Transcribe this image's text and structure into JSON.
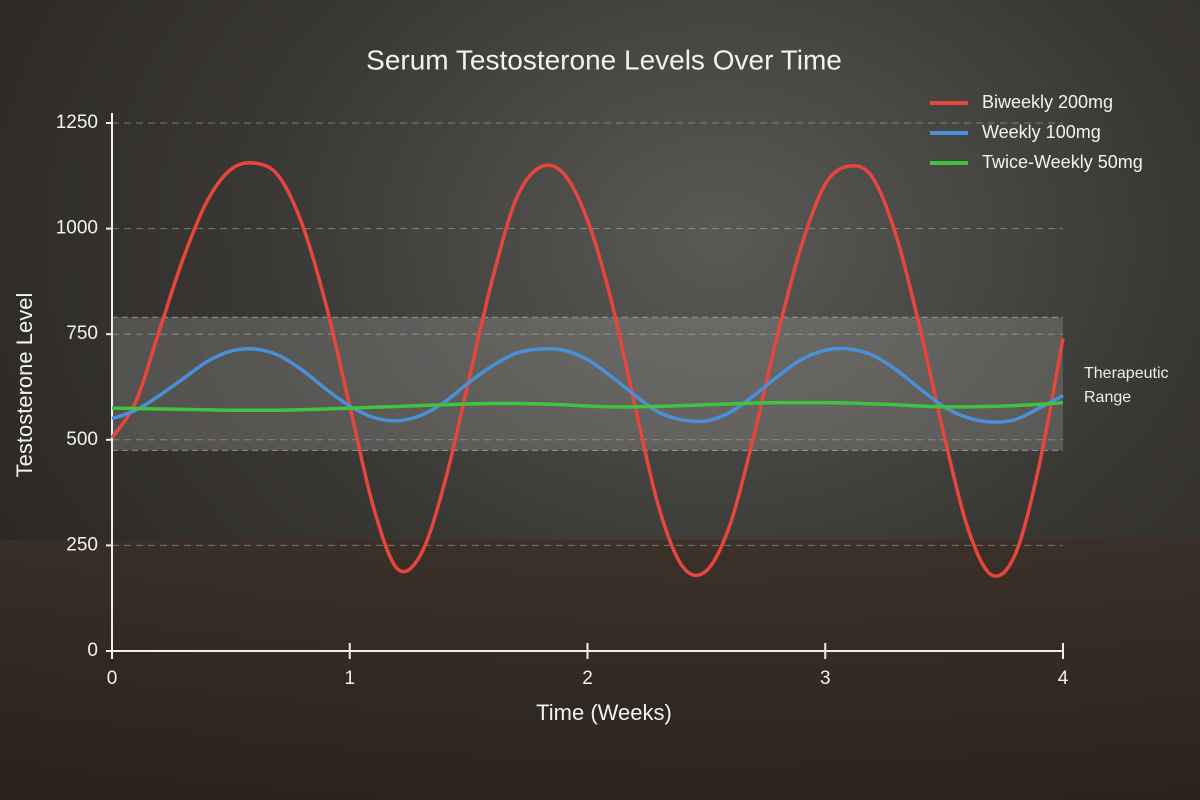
{
  "chart_data": {
    "type": "line",
    "title": "Serum Testosterone Levels Over Time",
    "xlabel": "Time (Weeks)",
    "ylabel": "Testosterone Level",
    "x": [
      0,
      0.1,
      0.2,
      0.3,
      0.4,
      0.5,
      0.6,
      0.7,
      0.8,
      0.9,
      1,
      1.1,
      1.2,
      1.3,
      1.4,
      1.5,
      1.6,
      1.7,
      1.8,
      1.9,
      2,
      2.1,
      2.2,
      2.3,
      2.4,
      2.5,
      2.6,
      2.7,
      2.8,
      2.9,
      3,
      3.1,
      3.2,
      3.3,
      3.4,
      3.5,
      3.6,
      3.7,
      3.8,
      3.9,
      4
    ],
    "series": [
      {
        "name": "Biweekly 200mg",
        "color": "#e8453c",
        "values": [
          505,
          590,
          760,
          930,
          1065,
          1140,
          1155,
          1125,
          1010,
          820,
          580,
          340,
          195,
          230,
          400,
          640,
          880,
          1070,
          1145,
          1130,
          1020,
          830,
          580,
          340,
          200,
          190,
          300,
          510,
          750,
          960,
          1105,
          1148,
          1120,
          980,
          760,
          510,
          290,
          180,
          230,
          440,
          740
        ]
      },
      {
        "name": "Weekly 100mg",
        "color": "#4a90d9",
        "values": [
          550,
          570,
          605,
          645,
          685,
          710,
          715,
          700,
          665,
          620,
          580,
          553,
          545,
          558,
          590,
          635,
          675,
          705,
          715,
          712,
          690,
          650,
          605,
          565,
          547,
          545,
          565,
          605,
          650,
          690,
          712,
          715,
          700,
          665,
          620,
          578,
          552,
          542,
          548,
          575,
          605
        ]
      },
      {
        "name": "Twice-Weekly 50mg",
        "color": "#3ec43e",
        "values": [
          575,
          574,
          573,
          572,
          571,
          570,
          570,
          570,
          571,
          573,
          575,
          577,
          579,
          581,
          583,
          585,
          586,
          586,
          585,
          583,
          580,
          578,
          578,
          579,
          581,
          583,
          585,
          587,
          588,
          588,
          588,
          587,
          585,
          583,
          580,
          578,
          578,
          579,
          581,
          584,
          588
        ]
      }
    ],
    "xlim": [
      0,
      4
    ],
    "xticks": [
      0,
      1,
      2,
      3,
      4
    ],
    "ylim": [
      0,
      1250
    ],
    "yticks": [
      0,
      250,
      500,
      750,
      1000,
      1250
    ],
    "grid": true,
    "legend": "top-right",
    "band": {
      "range": [
        475,
        790
      ],
      "label": "Therapeutic Range"
    }
  }
}
